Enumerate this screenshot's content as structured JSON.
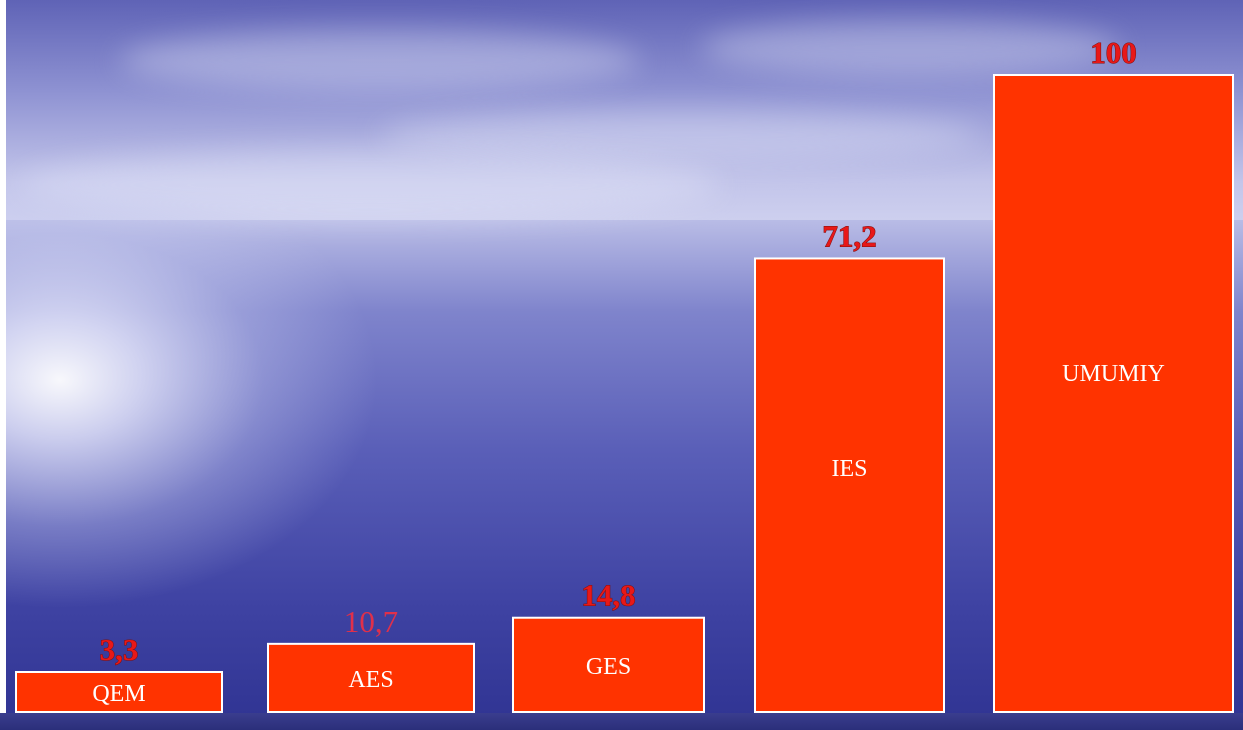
{
  "chart_data": {
    "type": "bar",
    "categories": [
      "QEM",
      "AES",
      "GES",
      "IES",
      "UMUMIY"
    ],
    "values": [
      3.3,
      10.7,
      14.8,
      71.2,
      100
    ],
    "value_labels": [
      "3,3",
      "10,7",
      "14,8",
      "71,2",
      "100"
    ],
    "title": "",
    "xlabel": "",
    "ylabel": "",
    "ylim": [
      0,
      100
    ],
    "grid": false,
    "bar_color": "#ff3300",
    "label_color": "#ffffff",
    "value_color": "#e81818"
  }
}
